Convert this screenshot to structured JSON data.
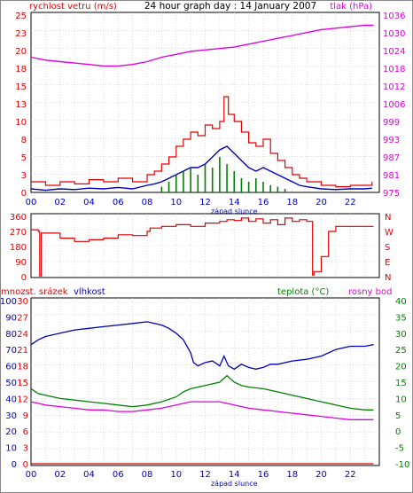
{
  "chart_data": [
    {
      "type": "line",
      "title": "24 hour graph day : 14 January 2007",
      "left_label": "rychlost vetru (m/s)",
      "right_label": "tlak (hPa)",
      "left_ticks": [
        "25",
        "23",
        "20",
        "18",
        "15",
        "13",
        "10",
        "8",
        "5",
        "3",
        "0"
      ],
      "right_ticks": [
        "1036",
        "1030",
        "1024",
        "1018",
        "1012",
        "1006",
        "999",
        "993",
        "987",
        "981",
        "975"
      ],
      "x_ticks": [
        "00",
        "02",
        "04",
        "06",
        "08",
        "10",
        "12",
        "14",
        "16",
        "18",
        "20",
        "22"
      ],
      "x_note": "západ slunce",
      "ylim_left": [
        0,
        25
      ],
      "ylim_right": [
        975,
        1036
      ],
      "series": [
        {
          "name": "rychlost vetru (m/s)",
          "color": "#e00000",
          "role": "gust",
          "x": [
            0,
            1,
            2,
            3,
            4,
            5,
            6,
            7,
            8,
            8.5,
            9,
            9.5,
            10,
            10.5,
            11,
            11.5,
            12,
            12.5,
            13,
            13.3,
            13.6,
            14,
            14.5,
            15,
            15.5,
            16,
            16.5,
            17,
            17.5,
            18,
            18.5,
            19,
            20,
            21,
            22,
            23,
            23.5
          ],
          "y": [
            1.5,
            1.0,
            1.5,
            1.2,
            1.8,
            1.5,
            2.0,
            1.5,
            2.5,
            3.0,
            4.0,
            5.0,
            6.5,
            7.5,
            8.5,
            8.0,
            9.5,
            9.0,
            10.0,
            13.5,
            11.0,
            10.0,
            8.5,
            7.0,
            6.5,
            7.5,
            5.5,
            4.5,
            3.5,
            2.5,
            2.0,
            1.5,
            1.0,
            0.8,
            1.0,
            1.0,
            1.5
          ]
        },
        {
          "name": "",
          "color": "#0000c0",
          "role": "average",
          "x": [
            0,
            1,
            2,
            3,
            4,
            5,
            6,
            7,
            8,
            8.5,
            9,
            9.5,
            10,
            10.5,
            11,
            11.5,
            12,
            12.5,
            13,
            13.5,
            14,
            14.5,
            15,
            15.5,
            16,
            16.5,
            17,
            17.5,
            18,
            18.5,
            19,
            20,
            21,
            22,
            23,
            23.5
          ],
          "y": [
            0.5,
            0.3,
            0.5,
            0.4,
            0.6,
            0.5,
            0.7,
            0.5,
            1.0,
            1.2,
            1.5,
            2.0,
            2.5,
            3.0,
            3.5,
            3.5,
            4.0,
            5.0,
            6.0,
            6.5,
            5.5,
            4.5,
            3.5,
            3.0,
            3.5,
            3.0,
            2.5,
            2.0,
            1.5,
            1.0,
            0.8,
            0.5,
            0.4,
            0.5,
            0.5,
            0.6
          ]
        },
        {
          "name": "",
          "color": "#008000",
          "role": "gust-bars",
          "x": [
            9,
            9.5,
            10,
            10.5,
            11,
            11.5,
            12,
            12.5,
            13,
            13.5,
            14,
            14.5,
            15,
            15.5,
            16,
            16.5,
            17,
            17.5
          ],
          "y": [
            0.8,
            1.5,
            2.5,
            3.0,
            3.5,
            2.5,
            4.0,
            3.5,
            5.0,
            4.0,
            3.0,
            2.0,
            1.5,
            2.0,
            1.5,
            1.0,
            0.8,
            0.5
          ]
        },
        {
          "name": "tlak (hPa)",
          "color": "#e000e0",
          "axis": "right",
          "x": [
            0,
            1,
            2,
            3,
            4,
            5,
            6,
            7,
            8,
            9,
            10,
            11,
            12,
            13,
            14,
            15,
            16,
            17,
            18,
            19,
            20,
            21,
            22,
            23,
            23.6
          ],
          "y": [
            1021.5,
            1020.5,
            1020,
            1019.5,
            1019,
            1018.5,
            1018.5,
            1019,
            1020,
            1021.5,
            1022.5,
            1023.5,
            1024,
            1024.5,
            1025,
            1026,
            1027,
            1028,
            1029,
            1030,
            1031,
            1031.5,
            1032,
            1032.5,
            1032.5
          ]
        }
      ]
    },
    {
      "type": "line",
      "title": "",
      "left_ticks": [
        "360",
        "270",
        "180",
        "90",
        "0"
      ],
      "right_ticks": [
        "N",
        "W",
        "S",
        "E",
        "N"
      ],
      "ylim": [
        0,
        360
      ],
      "series": [
        {
          "name": "",
          "color": "#e00000",
          "x": [
            0,
            0.5,
            0.6,
            0.7,
            1,
            2,
            3,
            4,
            5,
            6,
            7,
            8,
            8.2,
            9,
            10,
            11,
            12,
            13,
            13.5,
            14,
            14.5,
            15,
            15.5,
            16,
            16.5,
            17,
            17.5,
            18,
            18.5,
            19,
            19.4,
            19.5,
            20,
            20.5,
            21,
            22,
            23,
            23.6
          ],
          "y": [
            280,
            270,
            5,
            260,
            260,
            230,
            210,
            220,
            230,
            250,
            245,
            270,
            290,
            300,
            310,
            300,
            320,
            330,
            340,
            335,
            350,
            330,
            345,
            320,
            340,
            310,
            350,
            330,
            340,
            330,
            10,
            30,
            120,
            270,
            300,
            300,
            300,
            300
          ]
        }
      ]
    },
    {
      "type": "line",
      "title": "",
      "labels": {
        "rain": "mnozst. srázek",
        "humidity": "vlhkost",
        "temp": "teplota (°C)",
        "dew": "rosny bod"
      },
      "rain_ticks": [
        "30",
        "27",
        "24",
        "21",
        "18",
        "15",
        "12",
        "9",
        "6",
        "3",
        "0"
      ],
      "humidity_ticks": [
        "100",
        "90",
        "80",
        "70",
        "60",
        "50",
        "40",
        "30",
        "20",
        "10",
        "0"
      ],
      "temp_ticks": [
        "40",
        "35",
        "30",
        "25",
        "20",
        "15",
        "10",
        "5",
        "0",
        "-5",
        "-10"
      ],
      "x_ticks": [
        "00",
        "02",
        "04",
        "06",
        "08",
        "10",
        "12",
        "14",
        "16",
        "18",
        "20",
        "22"
      ],
      "x_note": "západ slunce",
      "ylim_humidity": [
        0,
        100
      ],
      "ylim_temp": [
        -10,
        40
      ],
      "series": [
        {
          "name": "vlhkost",
          "color": "#0000c0",
          "axis": "humidity",
          "x": [
            0,
            0.5,
            1,
            2,
            3,
            4,
            5,
            6,
            7,
            8,
            8.5,
            9,
            9.5,
            10,
            10.5,
            11,
            11.2,
            11.5,
            12,
            12.5,
            13,
            13.3,
            13.6,
            14,
            14.5,
            15,
            15.5,
            16,
            16.5,
            17,
            18,
            19,
            20,
            21,
            22,
            23,
            23.6
          ],
          "y": [
            73,
            76,
            78,
            80,
            82,
            83,
            84,
            85,
            86,
            87,
            86,
            85,
            83,
            80,
            76,
            68,
            62,
            60,
            62,
            63,
            60,
            66,
            60,
            58,
            61,
            59,
            58,
            59,
            61,
            61,
            63,
            64,
            66,
            70,
            72,
            72,
            73
          ]
        },
        {
          "name": "teplota (°C)",
          "color": "#008000",
          "axis": "temp",
          "x": [
            0,
            0.5,
            1,
            2,
            3,
            4,
            5,
            6,
            7,
            8,
            9,
            10,
            10.5,
            11,
            12,
            13,
            13.5,
            14,
            14.5,
            15,
            16,
            17,
            18,
            19,
            20,
            21,
            22,
            23,
            23.6
          ],
          "y": [
            13,
            11.5,
            11,
            10,
            9.5,
            9,
            8.5,
            8,
            7.5,
            8,
            9,
            10.5,
            12,
            13,
            14,
            15,
            17,
            15,
            14,
            13.5,
            13,
            12,
            11,
            10,
            9,
            8,
            7,
            6.5,
            6.5
          ]
        },
        {
          "name": "rosny bod",
          "color": "#e000e0",
          "axis": "temp",
          "x": [
            0,
            0.5,
            1,
            2,
            3,
            4,
            5,
            6,
            7,
            8,
            9,
            10,
            11,
            12,
            13,
            14,
            15,
            16,
            17,
            18,
            19,
            20,
            21,
            22,
            23,
            23.6
          ],
          "y": [
            9,
            8.5,
            8,
            7.5,
            7,
            6.5,
            6.5,
            6,
            6,
            6.5,
            7,
            8,
            9,
            9,
            9,
            8,
            7,
            6.5,
            6,
            5.5,
            5,
            4.5,
            4,
            3.5,
            3.5,
            3.5
          ]
        },
        {
          "name": "mnozst. srázek",
          "color": "#e00000",
          "axis": "rain",
          "x": [
            0,
            23.6
          ],
          "y": [
            0,
            0
          ]
        }
      ]
    }
  ]
}
